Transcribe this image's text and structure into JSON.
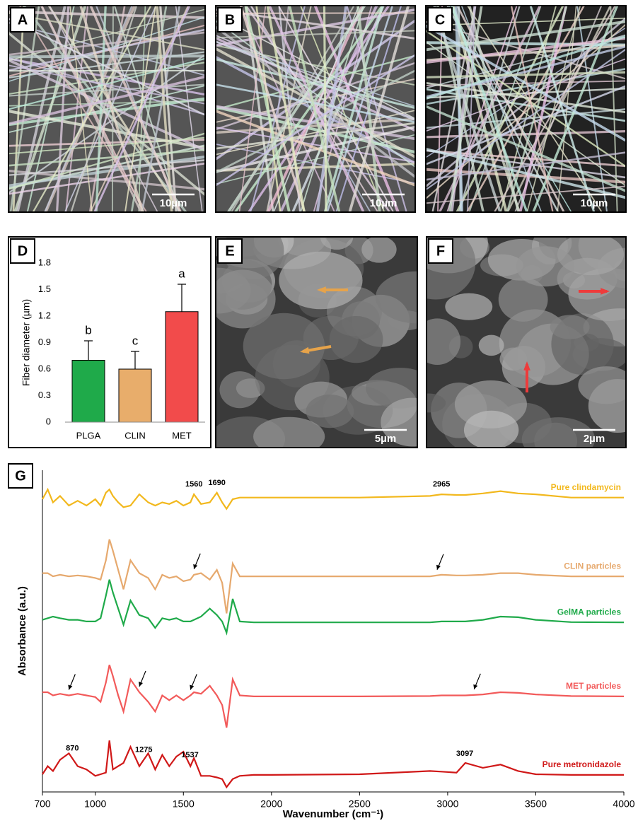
{
  "panels": [
    {
      "label": "A",
      "scale_bar": "10µm"
    },
    {
      "label": "B",
      "scale_bar": "10µm"
    },
    {
      "label": "C",
      "scale_bar": "10µm"
    },
    {
      "label": "E",
      "scale_bar": "5µm"
    },
    {
      "label": "F",
      "scale_bar": "2µm"
    }
  ],
  "chart_data": [
    {
      "type": "bar",
      "panel_label": "D",
      "y_label": "Fiber diameter (µm)",
      "categories": [
        "PLGA",
        "CLIN",
        "MET"
      ],
      "values": [
        0.7,
        0.6,
        1.25
      ],
      "errors": [
        0.22,
        0.2,
        0.31
      ],
      "letters": [
        "b",
        "c",
        "a"
      ],
      "colors": [
        "#1faa4a",
        "#e8ad6b",
        "#f24b4b"
      ],
      "ylim": [
        0,
        1.8
      ],
      "yticks": [
        0,
        0.3,
        0.6,
        0.9,
        1.2,
        1.5,
        1.8
      ]
    },
    {
      "type": "line",
      "panel_label": "G",
      "x_label": "Wavenumber (cm⁻¹)",
      "y_label": "Absorbance (a.u.)",
      "xlim": [
        700,
        4000
      ],
      "xticks": [
        700,
        1000,
        1500,
        2000,
        2500,
        3000,
        3500,
        4000
      ],
      "ylim": [
        0,
        100
      ],
      "x": [
        700,
        730,
        760,
        800,
        850,
        900,
        950,
        1000,
        1030,
        1060,
        1080,
        1100,
        1130,
        1160,
        1200,
        1250,
        1300,
        1340,
        1380,
        1420,
        1460,
        1500,
        1540,
        1560,
        1600,
        1650,
        1690,
        1720,
        1745,
        1780,
        1820,
        1900,
        2000,
        2500,
        2900,
        2965,
        3050,
        3100,
        3200,
        3300,
        3400,
        3500,
        3700,
        4000
      ],
      "series": [
        {
          "name": "Pure clindamycin",
          "color": "#f2b81d",
          "peaks": [
            1560,
            1690,
            2965
          ],
          "arrows": [],
          "values": [
            91,
            94,
            90,
            92,
            89,
            90.5,
            89,
            91,
            89,
            93,
            94,
            92,
            90,
            88.5,
            89,
            92.5,
            90,
            89,
            90,
            89.5,
            90.5,
            89,
            90,
            92.5,
            89.5,
            90,
            93,
            90,
            88,
            91,
            91.5,
            91.5,
            91.5,
            91.5,
            92,
            92.5,
            92.3,
            92.3,
            92.8,
            93.5,
            92.8,
            92.5,
            91.5,
            91.5
          ]
        },
        {
          "name": "CLIN particles",
          "color": "#e6a96e",
          "peaks": [],
          "arrows": [
            1560,
            2940
          ],
          "values": [
            68,
            68,
            67,
            67.5,
            67,
            67.3,
            67,
            66.5,
            66,
            72,
            78.5,
            75,
            69,
            63,
            72,
            68,
            66.5,
            63,
            67.5,
            66.5,
            67,
            65.5,
            66,
            67.5,
            68,
            66,
            69,
            65,
            55.5,
            71,
            67,
            67,
            67,
            67,
            67,
            67.5,
            67.3,
            67.3,
            67.5,
            68,
            68,
            67.5,
            67,
            67
          ]
        },
        {
          "name": "GelMA particles",
          "color": "#1faa4a",
          "peaks": [],
          "arrows": [],
          "values": [
            53.5,
            54,
            54.5,
            54,
            53.5,
            53.5,
            53,
            53,
            54,
            61,
            66,
            62,
            57,
            52,
            59.5,
            55,
            54,
            51,
            54,
            53.5,
            54,
            53,
            53,
            53.5,
            54.5,
            57,
            55,
            53,
            49.5,
            60,
            53,
            52.7,
            52.7,
            52.7,
            52.7,
            53,
            53,
            53,
            53.5,
            54.5,
            54.3,
            53.5,
            52.8,
            52.7
          ]
        },
        {
          "name": "MET particles",
          "color": "#f25a5a",
          "peaks": [],
          "arrows": [
            850,
            1250,
            1540,
            3150
          ],
          "values": [
            31,
            31,
            30,
            30.5,
            30,
            30.5,
            30,
            29.5,
            28,
            34,
            39.5,
            36,
            30,
            25,
            35,
            31,
            28,
            25,
            30,
            28.5,
            30,
            28.5,
            30,
            31,
            30.5,
            33,
            30,
            27,
            20,
            35,
            30,
            29.7,
            29.7,
            29.7,
            29.8,
            30,
            30,
            30,
            30.3,
            31,
            30.8,
            30.3,
            29.8,
            29.7
          ]
        },
        {
          "name": "Pure metronidazole",
          "color": "#d01818",
          "peaks": [
            870,
            1275,
            1537,
            3097
          ],
          "arrows": [],
          "values": [
            5.5,
            8,
            6.5,
            10,
            12,
            8,
            7,
            5,
            5.5,
            6,
            16,
            7,
            8,
            9,
            14,
            8,
            12,
            7,
            11.5,
            8,
            11,
            12.5,
            8,
            10.5,
            5,
            5,
            4.5,
            4,
            1.5,
            4,
            5,
            5.3,
            5.3,
            5.5,
            6.5,
            6.3,
            6,
            9,
            7.5,
            8.5,
            6.5,
            5.5,
            5.3,
            5.3
          ]
        }
      ]
    }
  ]
}
